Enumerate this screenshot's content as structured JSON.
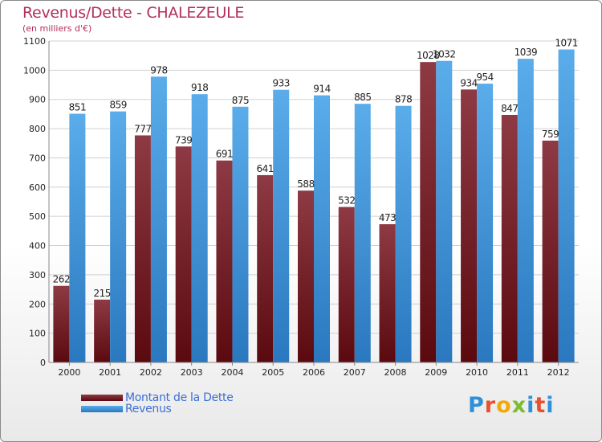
{
  "chart_data": {
    "type": "bar",
    "title": "Revenus/Dette - CHALEZEULE",
    "subtitle": "(en milliers d'€)",
    "categories": [
      "2000",
      "2001",
      "2002",
      "2003",
      "2004",
      "2005",
      "2006",
      "2007",
      "2008",
      "2009",
      "2010",
      "2011",
      "2012"
    ],
    "series": [
      {
        "name": "Montant de la Dette",
        "values": [
          262,
          215,
          777,
          739,
          691,
          641,
          588,
          532,
          473,
          1028,
          934,
          847,
          759
        ]
      },
      {
        "name": "Revenus",
        "values": [
          851,
          859,
          978,
          918,
          875,
          933,
          914,
          885,
          878,
          1032,
          954,
          1039,
          1071
        ]
      }
    ],
    "ylim": [
      0,
      1100
    ],
    "yticks": [
      0,
      100,
      200,
      300,
      400,
      500,
      600,
      700,
      800,
      900,
      1000,
      1100
    ],
    "grid": true,
    "legend_placement": "bottom-left",
    "colors": {
      "dette_light": "#8e3a44",
      "dette_dark": "#5a0a0f",
      "revenus_light": "#5aacea",
      "revenus_dark": "#2a78bf",
      "title": "#b3305a",
      "legend_text": "#3a6fd6"
    }
  },
  "branding": {
    "logo_text": "Proxiti",
    "logo_colors": [
      "#2f8fd8",
      "#e8512d",
      "#f2a90a",
      "#7cbc2f",
      "#2f8fd8",
      "#e8512d",
      "#2f8fd8"
    ]
  }
}
